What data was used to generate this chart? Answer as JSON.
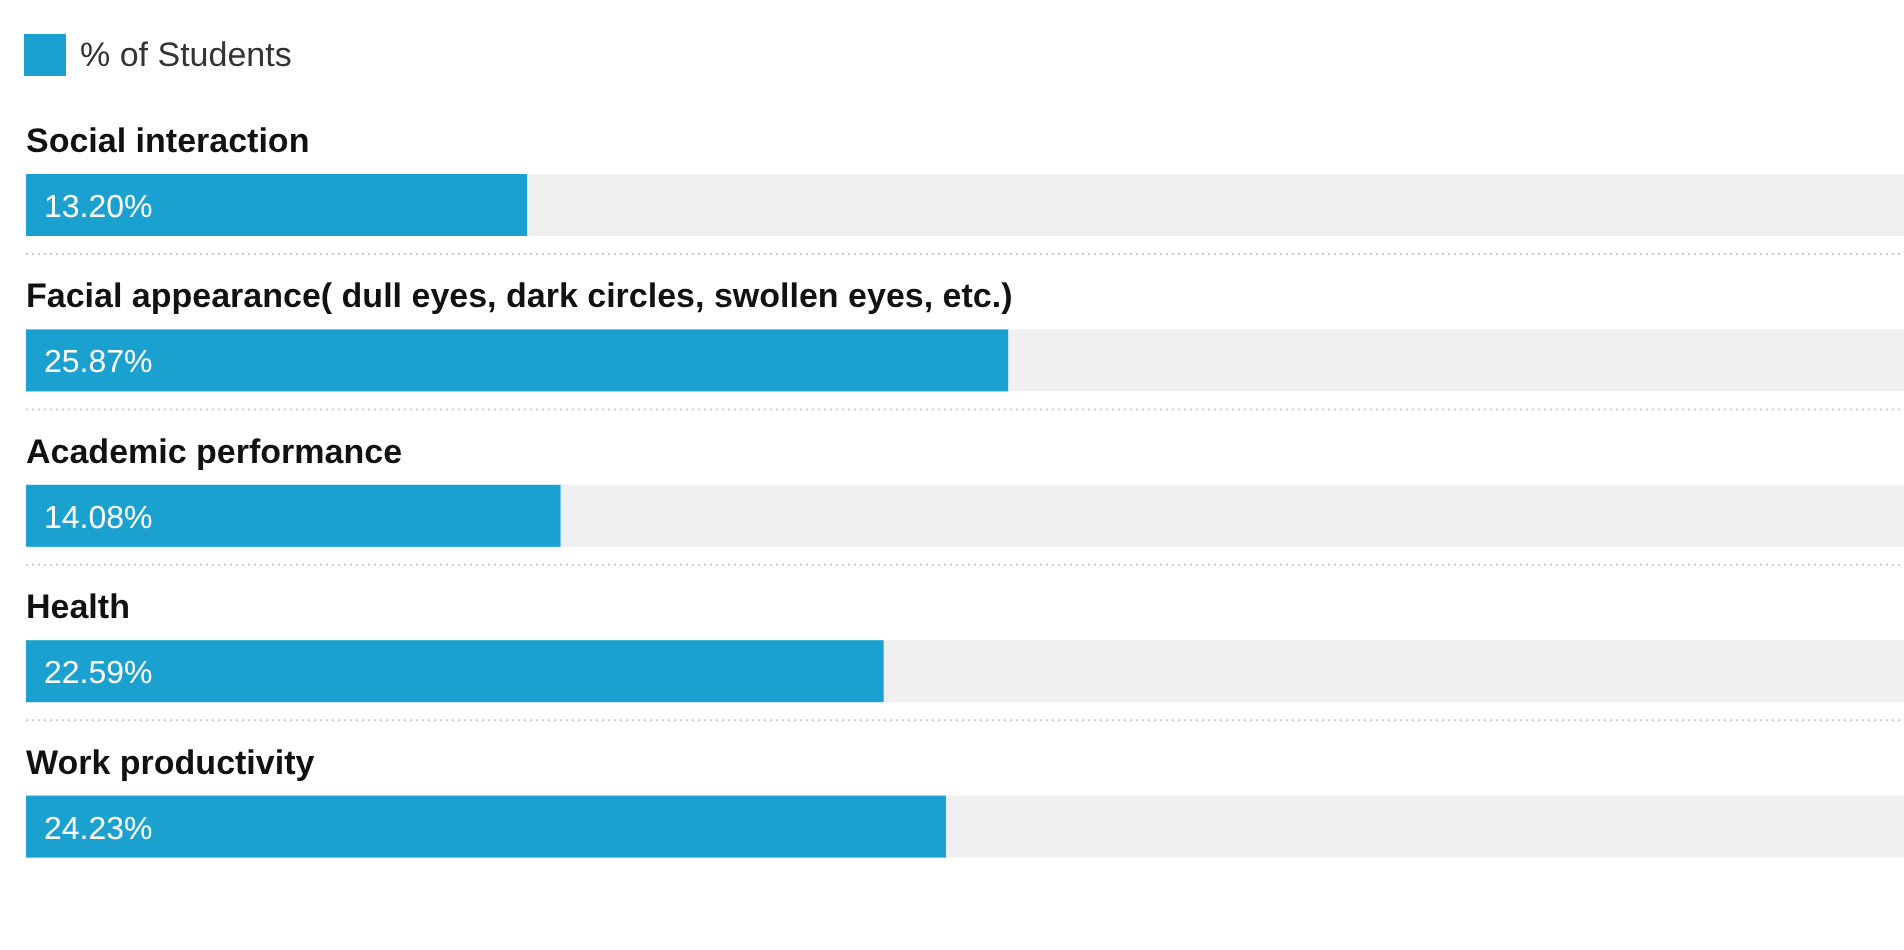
{
  "chart_data": {
    "type": "bar",
    "orientation": "horizontal",
    "categories": [
      "Social interaction",
      "Facial appearance( dull eyes, dark circles, swollen eyes, etc.)",
      "Academic performance",
      "Health",
      "Work productivity"
    ],
    "series": [
      {
        "name": "% of Students",
        "color": "#1aa1d0",
        "values": [
          13.2,
          25.87,
          14.08,
          22.59,
          24.23
        ],
        "value_labels": [
          "13.20%",
          "25.87%",
          "14.08%",
          "22.59%",
          "24.23%"
        ]
      }
    ],
    "legend": "top left"
  }
}
